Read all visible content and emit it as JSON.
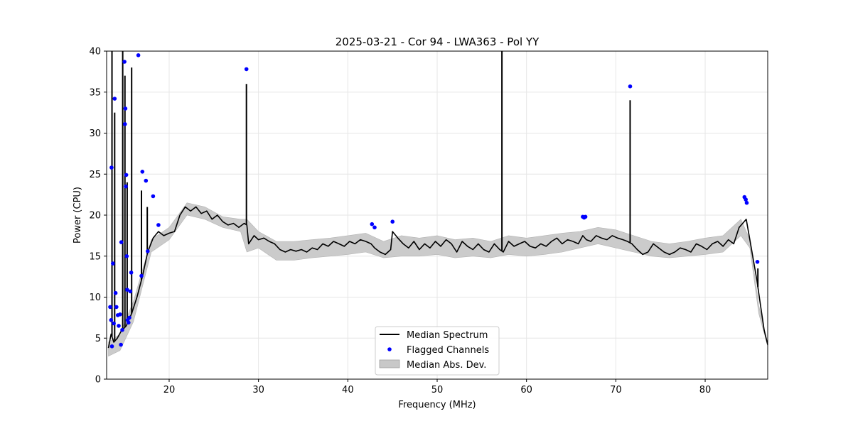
{
  "chart_data": {
    "type": "line",
    "title": "2025-03-21 - Cor 94 - LWA363 - Pol YY",
    "xlabel": "Frequency (MHz)",
    "ylabel": "Power (CPU)",
    "xlim": [
      13.0,
      87.0
    ],
    "ylim": [
      0,
      40
    ],
    "grid": true,
    "legend_position": "lower-center",
    "x_ticks": [
      20,
      30,
      40,
      50,
      60,
      70,
      80
    ],
    "y_ticks": [
      0,
      5,
      10,
      15,
      20,
      25,
      30,
      35,
      40
    ],
    "legend": [
      {
        "label": "Median Spectrum",
        "kind": "line",
        "color": "#000000"
      },
      {
        "label": "Flagged Channels",
        "kind": "marker",
        "color": "#0000ff"
      },
      {
        "label": "Median Abs. Dev.",
        "kind": "band",
        "color": "#c8c8c8"
      }
    ],
    "series": [
      {
        "name": "Median Spectrum",
        "color": "#000000",
        "x": [
          13.2,
          13.5,
          13.8,
          14.2,
          14.6,
          15.2,
          15.8,
          16.4,
          17.0,
          17.6,
          18.2,
          18.8,
          19.4,
          20.0,
          20.6,
          21.2,
          21.8,
          22.4,
          23.0,
          23.6,
          24.2,
          24.8,
          25.4,
          26.0,
          26.6,
          27.2,
          27.8,
          28.4,
          28.7,
          28.9,
          29.5,
          30.0,
          30.6,
          31.2,
          31.8,
          32.4,
          33.0,
          33.6,
          34.2,
          34.8,
          35.4,
          36.0,
          36.6,
          37.2,
          37.8,
          38.4,
          39.0,
          39.6,
          40.2,
          40.8,
          41.4,
          42.0,
          42.6,
          43.0,
          43.6,
          44.2,
          44.8,
          45.0,
          45.6,
          46.2,
          46.8,
          47.4,
          48.0,
          48.6,
          49.2,
          49.8,
          50.4,
          51.0,
          51.6,
          52.2,
          52.8,
          53.4,
          54.0,
          54.6,
          55.2,
          55.8,
          56.4,
          57.0,
          57.4,
          58.0,
          58.6,
          59.2,
          59.8,
          60.4,
          61.0,
          61.6,
          62.2,
          62.8,
          63.4,
          64.0,
          64.6,
          65.2,
          65.8,
          66.3,
          66.7,
          67.2,
          67.8,
          68.4,
          69.0,
          69.6,
          70.2,
          70.8,
          71.3,
          71.8,
          72.4,
          73.0,
          73.6,
          74.2,
          74.8,
          75.4,
          76.0,
          76.6,
          77.2,
          77.8,
          78.4,
          79.0,
          79.6,
          80.2,
          80.8,
          81.4,
          82.0,
          82.6,
          83.2,
          83.8,
          84.2,
          84.6,
          85.0,
          85.4,
          85.8,
          86.2,
          86.6,
          87.0
        ],
        "values": [
          3.8,
          5.5,
          4.5,
          5.0,
          5.8,
          6.5,
          8.0,
          10.0,
          12.5,
          15.5,
          17.2,
          18.0,
          17.5,
          17.8,
          18.0,
          20.0,
          21.0,
          20.5,
          21.0,
          20.2,
          20.5,
          19.5,
          20.0,
          19.2,
          18.8,
          19.0,
          18.5,
          19.0,
          18.8,
          16.5,
          17.5,
          17.0,
          17.2,
          16.8,
          16.5,
          15.8,
          15.5,
          15.8,
          15.6,
          15.8,
          15.5,
          16.0,
          15.8,
          16.5,
          16.2,
          16.8,
          16.5,
          16.2,
          16.8,
          16.5,
          17.0,
          16.8,
          16.5,
          16.0,
          15.5,
          15.2,
          15.8,
          18.0,
          17.2,
          16.5,
          16.0,
          16.8,
          15.8,
          16.5,
          16.0,
          16.8,
          16.2,
          17.0,
          16.5,
          15.5,
          16.8,
          16.2,
          15.8,
          16.5,
          15.8,
          15.5,
          16.5,
          15.8,
          15.5,
          16.8,
          16.2,
          16.5,
          16.8,
          16.2,
          16.0,
          16.5,
          16.2,
          16.8,
          17.2,
          16.5,
          17.0,
          16.8,
          16.5,
          17.5,
          17.0,
          16.8,
          17.5,
          17.2,
          17.0,
          17.5,
          17.2,
          17.0,
          16.8,
          16.5,
          15.8,
          15.2,
          15.5,
          16.5,
          16.0,
          15.5,
          15.2,
          15.5,
          16.0,
          15.8,
          15.5,
          16.5,
          16.2,
          15.8,
          16.5,
          16.8,
          16.2,
          17.0,
          16.5,
          18.5,
          19.0,
          19.5,
          17.0,
          14.5,
          12.0,
          9.0,
          6.0,
          4.2
        ]
      },
      {
        "name": "Flagged Channels",
        "color": "#0000ff",
        "x": [
          13.4,
          13.55,
          13.7,
          13.9,
          14.0,
          14.1,
          13.5,
          13.6,
          13.8,
          14.25,
          14.35,
          14.5,
          14.6,
          14.65,
          14.75,
          15.0,
          15.05,
          15.1,
          15.15,
          15.2,
          15.25,
          15.3,
          15.35,
          15.45,
          15.55,
          15.65,
          15.75,
          16.55,
          16.9,
          17.0,
          17.4,
          17.6,
          18.2,
          18.8,
          28.65,
          42.7,
          43.0,
          45.0,
          66.3,
          66.45,
          66.6,
          71.6,
          84.4,
          84.55,
          84.65,
          85.85
        ],
        "values": [
          8.8,
          25.8,
          14.1,
          34.2,
          10.5,
          8.8,
          7.2,
          4.0,
          6.8,
          7.8,
          6.5,
          7.9,
          4.2,
          16.7,
          6.0,
          38.7,
          31.1,
          33.0,
          23.5,
          24.9,
          15.0,
          10.9,
          7.2,
          6.9,
          7.5,
          10.7,
          13.0,
          39.5,
          12.6,
          25.3,
          24.2,
          15.6,
          22.3,
          18.8,
          37.8,
          18.9,
          18.5,
          19.2,
          19.8,
          19.7,
          19.8,
          35.7,
          22.2,
          21.9,
          21.5,
          14.3
        ]
      },
      {
        "name": "Median Abs. Dev.",
        "color": "#c8c8c8",
        "x": [
          13.2,
          14.5,
          16.0,
          18.0,
          20.0,
          22.0,
          24.0,
          26.0,
          28.0,
          28.7,
          30.0,
          32.0,
          34.0,
          36.0,
          38.0,
          40.0,
          42.0,
          44.0,
          46.0,
          48.0,
          50.0,
          52.0,
          54.0,
          56.0,
          58.0,
          60.0,
          62.0,
          64.0,
          66.0,
          68.0,
          70.0,
          72.0,
          74.0,
          76.0,
          78.0,
          80.0,
          82.0,
          84.0,
          85.0,
          86.0,
          87.0
        ],
        "upper": [
          4.5,
          5.5,
          9.5,
          17.0,
          18.5,
          21.5,
          21.0,
          19.8,
          19.5,
          19.5,
          18.0,
          16.8,
          16.8,
          17.0,
          17.2,
          17.5,
          17.8,
          16.8,
          17.5,
          17.2,
          17.5,
          17.0,
          17.2,
          16.8,
          17.5,
          17.2,
          17.5,
          17.8,
          18.0,
          18.5,
          18.2,
          17.5,
          16.8,
          16.5,
          16.8,
          17.2,
          17.5,
          19.5,
          17.0,
          9.0,
          4.2
        ],
        "lower": [
          2.8,
          3.5,
          7.0,
          15.5,
          17.0,
          20.0,
          19.5,
          18.5,
          18.0,
          15.5,
          16.0,
          14.5,
          14.5,
          14.8,
          15.0,
          15.2,
          15.5,
          14.8,
          15.0,
          15.0,
          15.2,
          14.8,
          15.0,
          14.8,
          15.2,
          15.0,
          15.2,
          15.5,
          16.0,
          16.5,
          16.0,
          15.5,
          15.0,
          14.8,
          15.0,
          15.2,
          15.5,
          17.5,
          16.0,
          8.0,
          4.0
        ]
      }
    ],
    "spikes": [
      {
        "x": 13.6,
        "top": 40.0
      },
      {
        "x": 13.9,
        "top": 32.5
      },
      {
        "x": 14.8,
        "top": 40.0
      },
      {
        "x": 15.05,
        "top": 37.0
      },
      {
        "x": 15.3,
        "top": 24.0
      },
      {
        "x": 15.8,
        "top": 38.0
      },
      {
        "x": 16.9,
        "top": 23.0
      },
      {
        "x": 17.55,
        "top": 21.0
      },
      {
        "x": 28.65,
        "top": 36.0
      },
      {
        "x": 57.25,
        "top": 40.0
      },
      {
        "x": 71.6,
        "top": 34.0
      },
      {
        "x": 85.9,
        "top": 13.5
      }
    ]
  }
}
